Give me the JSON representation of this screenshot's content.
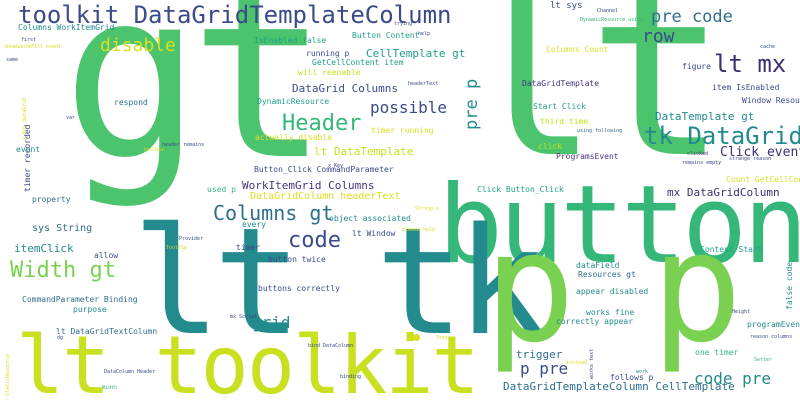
{
  "background": "#ffffff",
  "palette": {
    "green": "#4cc46d",
    "teal": "#238a8d",
    "lime": "#c8e020",
    "navy": "#3b4a8b",
    "indigo": "#3e2f73",
    "purple": "#46337e",
    "blue": "#2e6e8e",
    "lightgreen": "#7ad151",
    "mint": "#35b779",
    "sea": "#1f9e89",
    "yellow": "#d9e021"
  },
  "words": [
    {
      "text": "gt",
      "color": "green"
    },
    {
      "text": "lt",
      "color": "green"
    },
    {
      "text": "button",
      "color": "mint"
    },
    {
      "text": "lt tk",
      "color": "teal"
    },
    {
      "text": "p p",
      "color": "lightgreen"
    },
    {
      "text": "lt toolkit",
      "color": "lime"
    },
    {
      "text": "toolkit DataGridTemplateColumn",
      "color": "navy"
    },
    {
      "text": "tk DataGrid",
      "color": "teal"
    },
    {
      "text": "Header",
      "color": "mint"
    },
    {
      "text": "Width gt",
      "color": "lightgreen"
    },
    {
      "text": "code",
      "color": "navy"
    },
    {
      "text": "Columns gt",
      "color": "blue"
    },
    {
      "text": "lt mx",
      "color": "indigo"
    },
    {
      "text": "pre code",
      "color": "blue"
    },
    {
      "text": "row",
      "color": "navy"
    },
    {
      "text": "disable",
      "color": "yellow"
    },
    {
      "text": "possible",
      "color": "navy"
    },
    {
      "text": "grid",
      "color": "teal"
    },
    {
      "text": "code pre",
      "color": "teal"
    },
    {
      "text": "p pre",
      "color": "navy"
    },
    {
      "text": "Click event",
      "color": "indigo"
    },
    {
      "text": "pre p",
      "color": "teal"
    },
    {
      "text": "CellTemplate gt",
      "color": "sea"
    },
    {
      "text": "DataGrid Columns",
      "color": "navy"
    },
    {
      "text": "DataTemplate gt",
      "color": "teal"
    },
    {
      "text": "lt DataTemplate",
      "color": "lime"
    },
    {
      "text": "WorkItemGrid Columns",
      "color": "purple"
    },
    {
      "text": "mx DataGridColumn",
      "color": "indigo"
    },
    {
      "text": "DataGridTemplateColumn CellTemplate",
      "color": "blue"
    },
    {
      "text": "trigger",
      "color": "blue"
    },
    {
      "text": "itemClick",
      "color": "teal"
    },
    {
      "text": "DataGridColumn headerText",
      "color": "yellow"
    },
    {
      "text": "sys String",
      "color": "blue"
    },
    {
      "text": "lt sys",
      "color": "navy"
    },
    {
      "text": "Button Content",
      "color": "sea"
    },
    {
      "text": "IsEnabled false",
      "color": "sea"
    },
    {
      "text": "running p",
      "color": "navy"
    },
    {
      "text": "GetCellContent item",
      "color": "sea"
    },
    {
      "text": "will reenable",
      "color": "lime"
    },
    {
      "text": "DynamicResource",
      "color": "sea"
    },
    {
      "text": "Columns WorkItemGrid",
      "color": "teal"
    },
    {
      "text": "Columns Count",
      "color": "yellow"
    },
    {
      "text": "DataGridTemplate",
      "color": "purple"
    },
    {
      "text": "Start Click",
      "color": "sea"
    },
    {
      "text": "third time",
      "color": "lime"
    },
    {
      "text": "timer running",
      "color": "yellow"
    },
    {
      "text": "actually disable",
      "color": "yellow"
    },
    {
      "text": "click",
      "color": "lime"
    },
    {
      "text": "ProgramsEvent",
      "color": "purple"
    },
    {
      "text": "Button_Click CommandParameter",
      "color": "navy"
    },
    {
      "text": "used p",
      "color": "mint"
    },
    {
      "text": "Click Button_Click",
      "color": "sea"
    },
    {
      "text": "Resources gt",
      "color": "blue"
    },
    {
      "text": "Count GetCellContent",
      "color": "yellow"
    },
    {
      "text": "lt Window",
      "color": "navy"
    },
    {
      "text": "object associated",
      "color": "teal"
    },
    {
      "text": "timer",
      "color": "navy"
    },
    {
      "text": "button twice",
      "color": "navy"
    },
    {
      "text": "buttons correctly",
      "color": "navy"
    },
    {
      "text": "dataField",
      "color": "teal"
    },
    {
      "text": "appear disabled",
      "color": "teal"
    },
    {
      "text": "works fine",
      "color": "teal"
    },
    {
      "text": "correctly appear",
      "color": "teal"
    },
    {
      "text": "CommandParameter Binding",
      "color": "blue"
    },
    {
      "text": "purpose",
      "color": "teal"
    },
    {
      "text": "lt DataGridTextColumn",
      "color": "blue"
    },
    {
      "text": "allow",
      "color": "navy"
    },
    {
      "text": "every",
      "color": "teal"
    },
    {
      "text": "Window Resources",
      "color": "navy"
    },
    {
      "text": "item IsEnabled",
      "color": "navy"
    },
    {
      "text": "Content Start",
      "color": "sea"
    },
    {
      "text": "one timer",
      "color": "mint"
    },
    {
      "text": "follows p",
      "color": "navy"
    },
    {
      "text": "respond",
      "color": "blue"
    },
    {
      "text": "event",
      "color": "teal"
    },
    {
      "text": "timer recorded",
      "color": "navy"
    },
    {
      "text": "property",
      "color": "blue"
    },
    {
      "text": "figure",
      "color": "navy"
    },
    {
      "text": "programEvent",
      "color": "teal"
    },
    {
      "text": "false code",
      "color": "teal"
    },
    {
      "text": "using following",
      "color": "blue"
    },
    {
      "text": "header remains",
      "color": "navy"
    },
    {
      "text": "DataColumn Header",
      "color": "navy"
    },
    {
      "text": "Width",
      "color": "mint"
    },
    {
      "text": "ToolTip",
      "color": "lime"
    },
    {
      "text": "Provider",
      "color": "navy"
    },
    {
      "text": "Setter",
      "color": "mint"
    },
    {
      "text": "work",
      "color": "teal"
    },
    {
      "text": "instead",
      "color": "yellow"
    },
    {
      "text": "Channel",
      "color": "navy"
    },
    {
      "text": "DynamicResource using",
      "color": "mint"
    },
    {
      "text": "trying",
      "color": "navy"
    },
    {
      "text": "cache",
      "color": "navy"
    },
    {
      "text": "headerText",
      "color": "navy"
    },
    {
      "text": "first",
      "color": "navy"
    },
    {
      "text": "showGanteFill event",
      "color": "yellow"
    },
    {
      "text": "remains empty",
      "color": "navy"
    },
    {
      "text": "strange reason",
      "color": "navy"
    },
    {
      "text": "clicked",
      "color": "purple"
    },
    {
      "text": "Height",
      "color": "navy"
    },
    {
      "text": "reason columns",
      "color": "navy"
    },
    {
      "text": "dg",
      "color": "navy"
    },
    {
      "text": "var",
      "color": "navy"
    },
    {
      "text": "mx Script",
      "color": "navy"
    },
    {
      "text": "bind DataColumn",
      "color": "navy"
    },
    {
      "text": "String x",
      "color": "yellow"
    },
    {
      "text": "please help",
      "color": "yellow"
    },
    {
      "text": "Text",
      "color": "yellow"
    },
    {
      "text": "help",
      "color": "navy"
    },
    {
      "text": "same",
      "color": "navy"
    },
    {
      "text": "x Key",
      "color": "purple"
    },
    {
      "text": "Key StaticResource",
      "color": "yellow"
    },
    {
      "text": "toolbox",
      "color": "yellow"
    },
    {
      "text": "x Key dataGrid",
      "color": "yellow"
    },
    {
      "text": "binding",
      "color": "navy"
    },
    {
      "text": "works text",
      "color": "navy"
    }
  ]
}
